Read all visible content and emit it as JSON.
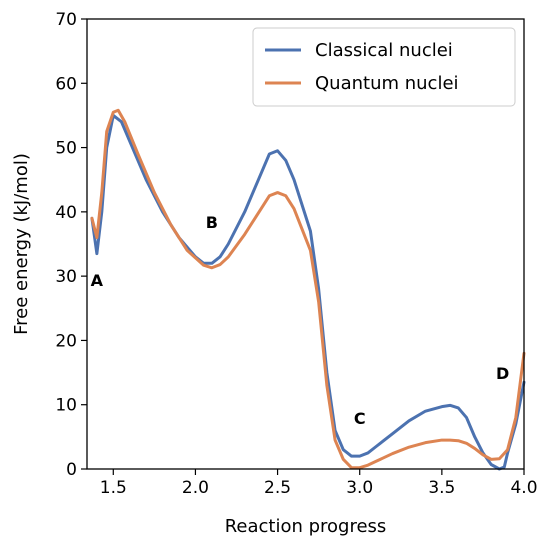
{
  "chart_data": {
    "type": "line",
    "title": "",
    "xlabel": "Reaction progress",
    "ylabel": "Free energy (kJ/mol)",
    "xlim": [
      1.34,
      4.0
    ],
    "ylim": [
      0,
      70
    ],
    "xticks": [
      1.5,
      2.0,
      2.5,
      3.0,
      3.5,
      4.0
    ],
    "xtick_labels": [
      "1.5",
      "2.0",
      "2.5",
      "3.0",
      "3.5",
      "4.0"
    ],
    "yticks": [
      0,
      10,
      20,
      30,
      40,
      50,
      60,
      70
    ],
    "ytick_labels": [
      "0",
      "10",
      "20",
      "30",
      "40",
      "50",
      "60",
      "70"
    ],
    "grid": false,
    "legend_position": "top-right",
    "series": [
      {
        "name": "Classical nuclei",
        "color": "#4c72b0",
        "x": [
          1.37,
          1.4,
          1.43,
          1.46,
          1.5,
          1.55,
          1.6,
          1.7,
          1.8,
          1.9,
          2.0,
          2.05,
          2.1,
          2.15,
          2.2,
          2.3,
          2.4,
          2.45,
          2.5,
          2.55,
          2.6,
          2.7,
          2.75,
          2.8,
          2.85,
          2.9,
          2.95,
          3.0,
          3.05,
          3.1,
          3.2,
          3.3,
          3.4,
          3.5,
          3.55,
          3.6,
          3.65,
          3.7,
          3.75,
          3.8,
          3.85,
          3.88,
          3.9,
          3.95,
          4.0
        ],
        "y": [
          39,
          33.5,
          40,
          50,
          55,
          54,
          51,
          45,
          40,
          36,
          33,
          32,
          32,
          33,
          35,
          40,
          46,
          49,
          49.5,
          48,
          45,
          37,
          28,
          15,
          6,
          3,
          2,
          2,
          2.5,
          3.5,
          5.5,
          7.5,
          9,
          9.7,
          9.9,
          9.5,
          8,
          5,
          2.5,
          0.7,
          0,
          0.3,
          2.5,
          7,
          13.5
        ]
      },
      {
        "name": "Quantum nuclei",
        "color": "#dd8452",
        "x": [
          1.37,
          1.4,
          1.43,
          1.46,
          1.5,
          1.53,
          1.57,
          1.65,
          1.75,
          1.85,
          1.95,
          2.05,
          2.1,
          2.15,
          2.2,
          2.3,
          2.4,
          2.45,
          2.5,
          2.55,
          2.6,
          2.7,
          2.75,
          2.8,
          2.85,
          2.9,
          2.95,
          3.0,
          3.05,
          3.1,
          3.2,
          3.3,
          3.4,
          3.5,
          3.55,
          3.6,
          3.65,
          3.7,
          3.75,
          3.8,
          3.85,
          3.9,
          3.95,
          4.0
        ],
        "y": [
          39,
          36,
          43,
          52.5,
          55.5,
          55.8,
          54,
          49,
          43,
          38,
          34,
          31.7,
          31.3,
          31.8,
          33,
          36.5,
          40.5,
          42.5,
          43,
          42.5,
          40.5,
          34,
          26,
          13,
          4.5,
          1.5,
          0.2,
          0.2,
          0.6,
          1.2,
          2.4,
          3.4,
          4.1,
          4.5,
          4.5,
          4.4,
          4,
          3.2,
          2.2,
          1.5,
          1.6,
          3,
          8,
          18
        ]
      }
    ],
    "annotations": [
      {
        "text": "A",
        "x": 1.4,
        "y": 28.5
      },
      {
        "text": "B",
        "x": 2.1,
        "y": 37.5
      },
      {
        "text": "C",
        "x": 3.0,
        "y": 7
      },
      {
        "text": "D",
        "x": 3.87,
        "y": 14
      }
    ]
  }
}
